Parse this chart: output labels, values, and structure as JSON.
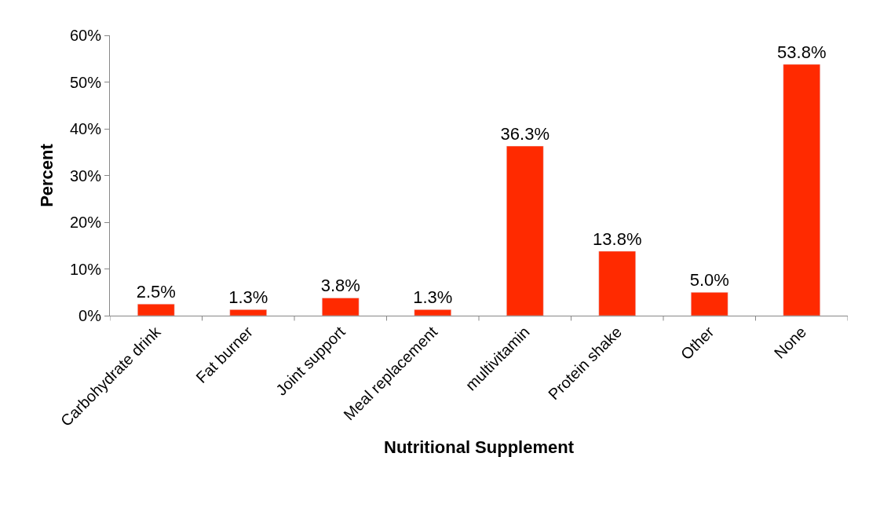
{
  "chart_data": {
    "type": "bar",
    "categories": [
      "Carbohydrate drink",
      "Fat burner",
      "Joint support",
      "Meal replacement",
      "multivitamin",
      "Protein shake",
      "Other",
      "None"
    ],
    "values": [
      2.5,
      1.3,
      3.8,
      1.3,
      36.3,
      13.8,
      5.0,
      53.8
    ],
    "value_labels": [
      "2.5%",
      "1.3%",
      "3.8%",
      "1.3%",
      "36.3%",
      "13.8%",
      "5.0%",
      "53.8%"
    ],
    "color": "#ff2a00",
    "xlabel": "Nutritional Supplement",
    "ylabel": "Percent",
    "ylim": [
      0,
      60.0
    ],
    "yticks": [
      {
        "value": 0,
        "label": "0%"
      },
      {
        "value": 10,
        "label": "10%"
      },
      {
        "value": 20,
        "label": "20%"
      },
      {
        "value": 30,
        "label": "30%"
      },
      {
        "value": 40,
        "label": "40%"
      },
      {
        "value": 50,
        "label": "50%"
      },
      {
        "value": 60,
        "label": "60%"
      }
    ],
    "tick_labels": true
  }
}
